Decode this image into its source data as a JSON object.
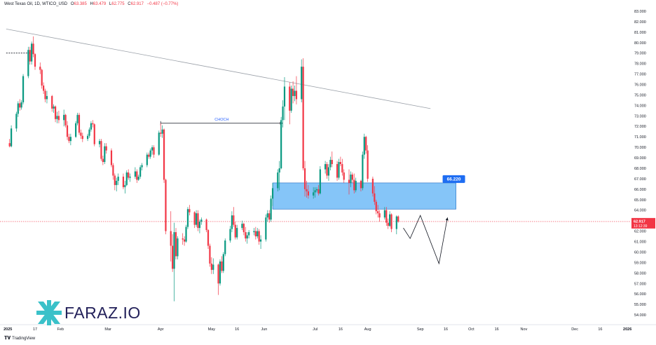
{
  "header": {
    "symbol": "West Texas Oil, 1D, WTICO_USD",
    "open_label": "O",
    "open": "63.385",
    "high_label": "H",
    "high": "63.479",
    "low_label": "L",
    "low": "62.775",
    "close_label": "C",
    "close": "62.917",
    "change": "−0.487 (−0.77%)"
  },
  "branding": {
    "logo_text": "FARAZ.IO",
    "footer": "TradingView"
  },
  "colors": {
    "up": "#089981",
    "down": "#f23645",
    "zone_fill": "#2196f3",
    "price_tag": "#f23645",
    "zone_tag": "#1e6df2"
  },
  "chart_data": {
    "type": "candlestick",
    "x_tick_labels": [
      "2025",
      "17",
      "Feb",
      "Mar",
      "Apr",
      "May",
      "16",
      "Jun",
      "Jul",
      "16",
      "Aug",
      "Sep",
      "16",
      "Oct",
      "16",
      "Nov",
      "Dec",
      "16",
      "2026"
    ],
    "y_tick_labels": [
      "54.000",
      "55.000",
      "56.000",
      "57.000",
      "58.000",
      "59.000",
      "60.000",
      "61.000",
      "62.000",
      "63.000",
      "64.000",
      "65.000",
      "66.000",
      "67.000",
      "68.000",
      "69.000",
      "70.000",
      "71.000",
      "72.000",
      "73.000",
      "74.000",
      "75.000",
      "76.000",
      "77.000",
      "78.000",
      "79.000",
      "80.000",
      "81.000",
      "82.000",
      "83.000"
    ],
    "ylim": [
      53.2,
      83.4
    ],
    "last_price": "62.917",
    "countdown": "13:12:39",
    "zone_label": "66.220",
    "choch_label": "CHOCH",
    "zone": {
      "from": "2025-06-06",
      "to": "2025-09-22",
      "low": 64.1,
      "high": 66.6
    },
    "choch": {
      "from": "2025-04-01",
      "to": "2025-06-12",
      "level": 72.3
    },
    "trendline": {
      "from": [
        "2024-12-31",
        81.3
      ],
      "to": [
        "2025-09-07",
        73.7
      ]
    },
    "high_marker": {
      "from": "2024-12-31",
      "to": "2025-01-14",
      "level": 79.0
    },
    "projection": [
      [
        "2025-08-22",
        62.3
      ],
      [
        "2025-08-26",
        61.3
      ],
      [
        "2025-09-01",
        63.5
      ],
      [
        "2025-09-12",
        58.9
      ],
      [
        "2025-09-17",
        63.3
      ]
    ],
    "candles": [
      [
        "2025-01-02",
        70.4,
        70.8,
        70.0,
        70.1
      ],
      [
        "2025-01-03",
        70.1,
        72.1,
        70.0,
        71.8
      ],
      [
        "2025-01-06",
        71.8,
        73.4,
        71.5,
        73.2
      ],
      [
        "2025-01-07",
        73.2,
        74.4,
        72.9,
        74.2
      ],
      [
        "2025-01-08",
        74.2,
        74.6,
        73.5,
        73.8
      ],
      [
        "2025-01-09",
        73.8,
        74.5,
        73.6,
        74.3
      ],
      [
        "2025-01-10",
        74.3,
        77.0,
        74.1,
        76.8
      ],
      [
        "2025-01-13",
        76.8,
        79.6,
        76.6,
        79.3
      ],
      [
        "2025-01-14",
        79.3,
        79.6,
        77.9,
        78.2
      ],
      [
        "2025-01-15",
        78.2,
        80.1,
        77.9,
        79.9
      ],
      [
        "2025-01-16",
        79.9,
        80.6,
        78.6,
        78.9
      ],
      [
        "2025-01-17",
        78.9,
        79.0,
        77.4,
        77.7
      ],
      [
        "2025-01-20",
        77.7,
        78.1,
        77.0,
        77.4
      ],
      [
        "2025-01-21",
        77.4,
        77.5,
        75.6,
        75.9
      ],
      [
        "2025-01-22",
        75.9,
        76.2,
        75.1,
        75.4
      ],
      [
        "2025-01-23",
        75.4,
        75.6,
        74.3,
        74.6
      ],
      [
        "2025-01-24",
        74.6,
        75.4,
        74.2,
        74.9
      ],
      [
        "2025-01-27",
        74.9,
        75.0,
        73.4,
        73.7
      ],
      [
        "2025-01-28",
        73.7,
        74.1,
        73.3,
        73.9
      ],
      [
        "2025-01-29",
        73.9,
        74.0,
        72.4,
        72.7
      ],
      [
        "2025-01-30",
        72.7,
        73.4,
        72.3,
        73.0
      ],
      [
        "2025-01-31",
        73.0,
        73.5,
        72.3,
        72.6
      ],
      [
        "2025-02-03",
        72.6,
        73.6,
        72.0,
        73.1
      ],
      [
        "2025-02-04",
        73.1,
        73.2,
        71.9,
        72.1
      ],
      [
        "2025-02-05",
        72.1,
        72.5,
        70.7,
        71.0
      ],
      [
        "2025-02-06",
        71.0,
        71.3,
        70.4,
        70.6
      ],
      [
        "2025-02-07",
        70.6,
        71.3,
        70.2,
        71.0
      ],
      [
        "2025-02-10",
        71.0,
        72.5,
        70.9,
        72.3
      ],
      [
        "2025-02-11",
        72.3,
        73.3,
        72.1,
        73.1
      ],
      [
        "2025-02-12",
        73.1,
        73.3,
        71.2,
        71.4
      ],
      [
        "2025-02-13",
        71.4,
        71.7,
        70.8,
        71.1
      ],
      [
        "2025-02-14",
        71.1,
        71.4,
        70.5,
        70.8
      ],
      [
        "2025-02-17",
        70.8,
        71.3,
        70.6,
        71.1
      ],
      [
        "2025-02-18",
        71.1,
        71.9,
        70.9,
        71.7
      ],
      [
        "2025-02-19",
        71.7,
        72.5,
        71.5,
        72.3
      ],
      [
        "2025-02-20",
        72.3,
        72.6,
        71.9,
        72.2
      ],
      [
        "2025-02-21",
        72.2,
        72.3,
        70.1,
        70.3
      ],
      [
        "2025-02-24",
        70.3,
        70.8,
        70.0,
        70.6
      ],
      [
        "2025-02-25",
        70.6,
        70.8,
        68.7,
        68.9
      ],
      [
        "2025-02-26",
        68.9,
        69.2,
        68.3,
        68.6
      ],
      [
        "2025-02-27",
        68.6,
        70.4,
        68.4,
        70.1
      ],
      [
        "2025-02-28",
        70.1,
        70.4,
        69.4,
        69.7
      ],
      [
        "2025-03-03",
        69.7,
        69.9,
        68.1,
        68.3
      ],
      [
        "2025-03-04",
        68.3,
        68.5,
        66.9,
        67.3
      ],
      [
        "2025-03-05",
        67.3,
        67.5,
        65.9,
        66.4
      ],
      [
        "2025-03-06",
        66.4,
        67.1,
        65.8,
        66.8
      ],
      [
        "2025-03-07",
        66.8,
        67.5,
        66.4,
        67.2
      ],
      [
        "2025-03-10",
        67.2,
        67.5,
        66.0,
        66.2
      ],
      [
        "2025-03-11",
        66.2,
        66.8,
        65.6,
        66.4
      ],
      [
        "2025-03-12",
        66.4,
        67.8,
        66.3,
        67.6
      ],
      [
        "2025-03-13",
        67.6,
        67.9,
        66.9,
        67.1
      ],
      [
        "2025-03-14",
        67.1,
        67.5,
        66.7,
        67.2
      ],
      [
        "2025-03-17",
        67.2,
        68.1,
        67.0,
        67.7
      ],
      [
        "2025-03-18",
        67.7,
        67.9,
        66.6,
        66.9
      ],
      [
        "2025-03-19",
        66.9,
        67.4,
        66.8,
        67.2
      ],
      [
        "2025-03-20",
        67.2,
        68.3,
        67.0,
        68.1
      ],
      [
        "2025-03-21",
        68.1,
        68.5,
        67.8,
        68.3
      ],
      [
        "2025-03-24",
        68.3,
        69.5,
        68.1,
        69.3
      ],
      [
        "2025-03-25",
        69.3,
        69.5,
        68.9,
        69.1
      ],
      [
        "2025-03-26",
        69.1,
        69.9,
        68.9,
        69.7
      ],
      [
        "2025-03-27",
        69.7,
        70.2,
        69.3,
        70.0
      ],
      [
        "2025-03-28",
        70.0,
        70.2,
        69.0,
        69.3
      ],
      [
        "2025-03-31",
        69.3,
        71.6,
        69.2,
        71.4
      ],
      [
        "2025-04-01",
        71.4,
        72.3,
        71.0,
        71.3
      ],
      [
        "2025-04-02",
        71.3,
        72.1,
        70.9,
        71.7
      ],
      [
        "2025-04-03",
        71.7,
        71.8,
        66.6,
        66.9
      ],
      [
        "2025-04-04",
        66.9,
        67.0,
        61.7,
        62.0
      ],
      [
        "2025-04-07",
        62.0,
        63.9,
        59.1,
        60.6
      ],
      [
        "2025-04-08",
        60.6,
        61.7,
        58.1,
        58.4
      ],
      [
        "2025-04-09",
        58.4,
        62.8,
        55.3,
        61.9
      ],
      [
        "2025-04-10",
        61.9,
        62.3,
        59.3,
        59.6
      ],
      [
        "2025-04-11",
        59.6,
        61.5,
        59.3,
        61.3
      ],
      [
        "2025-04-14",
        61.3,
        61.8,
        60.7,
        61.2
      ],
      [
        "2025-04-15",
        61.2,
        61.5,
        60.6,
        61.0
      ],
      [
        "2025-04-16",
        61.0,
        62.6,
        60.9,
        62.4
      ],
      [
        "2025-04-17",
        62.4,
        64.3,
        62.2,
        64.1
      ],
      [
        "2025-04-18",
        64.1,
        64.5,
        63.5,
        63.8
      ],
      [
        "2025-04-21",
        63.8,
        63.9,
        62.3,
        62.6
      ],
      [
        "2025-04-22",
        62.6,
        64.0,
        62.4,
        63.7
      ],
      [
        "2025-04-23",
        63.7,
        64.0,
        62.0,
        62.3
      ],
      [
        "2025-04-24",
        62.3,
        63.1,
        61.8,
        62.9
      ],
      [
        "2025-04-25",
        62.9,
        63.3,
        62.6,
        63.1
      ],
      [
        "2025-04-28",
        63.1,
        63.2,
        61.9,
        62.1
      ],
      [
        "2025-04-29",
        62.1,
        62.2,
        60.3,
        60.6
      ],
      [
        "2025-04-30",
        60.6,
        60.8,
        58.6,
        58.9
      ],
      [
        "2025-05-01",
        58.9,
        59.5,
        57.9,
        58.3
      ],
      [
        "2025-05-02",
        58.3,
        59.4,
        57.9,
        58.8
      ],
      [
        "2025-05-05",
        58.8,
        58.9,
        55.9,
        57.0
      ],
      [
        "2025-05-06",
        57.0,
        59.3,
        56.8,
        59.1
      ],
      [
        "2025-05-07",
        59.1,
        59.6,
        58.0,
        58.2
      ],
      [
        "2025-05-08",
        58.2,
        60.0,
        58.0,
        59.8
      ],
      [
        "2025-05-09",
        59.8,
        61.3,
        59.6,
        61.1
      ],
      [
        "2025-05-12",
        61.1,
        62.5,
        60.9,
        62.2
      ],
      [
        "2025-05-13",
        62.2,
        63.9,
        61.9,
        63.5
      ],
      [
        "2025-05-14",
        63.5,
        64.3,
        62.4,
        62.6
      ],
      [
        "2025-05-15",
        62.6,
        62.9,
        61.2,
        61.4
      ],
      [
        "2025-05-16",
        61.4,
        62.6,
        61.2,
        62.3
      ],
      [
        "2025-05-19",
        62.3,
        63.0,
        62.1,
        62.7
      ],
      [
        "2025-05-20",
        62.7,
        62.8,
        61.6,
        61.9
      ],
      [
        "2025-05-21",
        61.9,
        62.4,
        61.0,
        61.3
      ],
      [
        "2025-05-22",
        61.3,
        61.9,
        60.8,
        61.6
      ],
      [
        "2025-05-23",
        61.6,
        62.1,
        61.3,
        61.9
      ],
      [
        "2025-05-26",
        61.9,
        62.3,
        61.6,
        62.0
      ],
      [
        "2025-05-27",
        62.0,
        62.4,
        61.2,
        61.5
      ],
      [
        "2025-05-28",
        61.5,
        62.3,
        61.3,
        62.0
      ],
      [
        "2025-05-29",
        62.0,
        62.2,
        60.7,
        61.0
      ],
      [
        "2025-05-30",
        61.0,
        61.6,
        60.3,
        61.2
      ],
      [
        "2025-06-02",
        61.2,
        63.6,
        61.0,
        63.3
      ],
      [
        "2025-06-03",
        63.3,
        64.0,
        62.9,
        63.7
      ],
      [
        "2025-06-04",
        63.7,
        64.0,
        62.8,
        63.1
      ],
      [
        "2025-06-05",
        63.1,
        65.4,
        62.9,
        65.1
      ],
      [
        "2025-06-06",
        65.1,
        66.6,
        64.4,
        66.1
      ],
      [
        "2025-06-09",
        66.1,
        67.9,
        65.8,
        67.6
      ],
      [
        "2025-06-10",
        67.6,
        68.7,
        65.9,
        68.0
      ],
      [
        "2025-06-11",
        68.0,
        72.9,
        67.9,
        72.6
      ],
      [
        "2025-06-12",
        72.6,
        74.5,
        71.9,
        73.9
      ],
      [
        "2025-06-13",
        73.9,
        76.7,
        72.6,
        75.8
      ],
      [
        "2025-06-16",
        75.8,
        76.2,
        72.2,
        73.5
      ],
      [
        "2025-06-17",
        73.5,
        75.9,
        73.3,
        75.6
      ],
      [
        "2025-06-18",
        75.6,
        76.3,
        74.2,
        74.9
      ],
      [
        "2025-06-19",
        74.9,
        75.9,
        74.4,
        75.4
      ],
      [
        "2025-06-20",
        75.4,
        76.8,
        74.1,
        74.6
      ],
      [
        "2025-06-23",
        74.6,
        78.4,
        74.3,
        77.7
      ],
      [
        "2025-06-24",
        77.7,
        78.5,
        67.8,
        68.0
      ],
      [
        "2025-06-25",
        68.0,
        68.7,
        65.3,
        66.0
      ],
      [
        "2025-06-26",
        66.0,
        66.8,
        65.2,
        65.8
      ],
      [
        "2025-06-27",
        65.8,
        66.4,
        65.1,
        65.4
      ],
      [
        "2025-06-30",
        65.4,
        66.2,
        65.1,
        65.7
      ],
      [
        "2025-07-01",
        65.7,
        66.2,
        65.2,
        65.9
      ],
      [
        "2025-07-02",
        65.9,
        66.2,
        65.7,
        66.0
      ],
      [
        "2025-07-03",
        66.0,
        66.4,
        65.4,
        65.6
      ],
      [
        "2025-07-04",
        65.6,
        68.2,
        65.5,
        67.9
      ],
      [
        "2025-07-07",
        67.9,
        68.7,
        67.5,
        68.4
      ],
      [
        "2025-07-08",
        68.4,
        68.6,
        67.0,
        67.3
      ],
      [
        "2025-07-09",
        67.3,
        68.4,
        66.8,
        68.1
      ],
      [
        "2025-07-10",
        68.1,
        69.1,
        67.8,
        68.8
      ],
      [
        "2025-07-11",
        68.8,
        69.6,
        68.1,
        68.4
      ],
      [
        "2025-07-14",
        68.4,
        68.7,
        66.8,
        67.1
      ],
      [
        "2025-07-15",
        67.1,
        68.9,
        66.9,
        68.6
      ],
      [
        "2025-07-16",
        68.6,
        69.1,
        68.2,
        68.4
      ],
      [
        "2025-07-17",
        68.4,
        68.9,
        67.3,
        67.6
      ],
      [
        "2025-07-18",
        67.6,
        67.9,
        66.6,
        66.9
      ],
      [
        "2025-07-21",
        66.9,
        67.9,
        65.5,
        66.6
      ],
      [
        "2025-07-22",
        66.6,
        67.7,
        66.2,
        67.4
      ],
      [
        "2025-07-23",
        67.4,
        67.6,
        66.6,
        66.9
      ],
      [
        "2025-07-24",
        66.9,
        67.5,
        65.6,
        65.9
      ],
      [
        "2025-07-25",
        65.9,
        67.1,
        65.7,
        66.8
      ],
      [
        "2025-07-28",
        66.8,
        66.9,
        65.8,
        66.1
      ],
      [
        "2025-07-29",
        66.1,
        69.6,
        65.9,
        69.3
      ],
      [
        "2025-07-30",
        69.3,
        71.3,
        68.9,
        71.0
      ],
      [
        "2025-07-31",
        71.0,
        71.1,
        69.4,
        69.7
      ],
      [
        "2025-08-01",
        69.7,
        70.2,
        66.7,
        67.0
      ],
      [
        "2025-08-04",
        67.0,
        67.2,
        65.3,
        65.6
      ],
      [
        "2025-08-05",
        65.6,
        66.3,
        64.5,
        64.8
      ],
      [
        "2025-08-06",
        64.8,
        65.0,
        63.6,
        63.9
      ],
      [
        "2025-08-07",
        63.9,
        64.5,
        63.3,
        63.7
      ],
      [
        "2025-08-08",
        63.7,
        64.0,
        62.9,
        63.3
      ],
      [
        "2025-08-11",
        63.3,
        64.3,
        63.1,
        64.0
      ],
      [
        "2025-08-12",
        64.0,
        64.3,
        62.5,
        62.8
      ],
      [
        "2025-08-13",
        62.8,
        63.2,
        62.2,
        62.5
      ],
      [
        "2025-08-14",
        62.5,
        63.9,
        62.4,
        63.6
      ],
      [
        "2025-08-15",
        63.6,
        63.7,
        61.9,
        62.2
      ],
      [
        "2025-08-18",
        62.2,
        63.5,
        61.7,
        63.4
      ],
      [
        "2025-08-19",
        63.4,
        63.5,
        62.8,
        62.9
      ]
    ]
  }
}
